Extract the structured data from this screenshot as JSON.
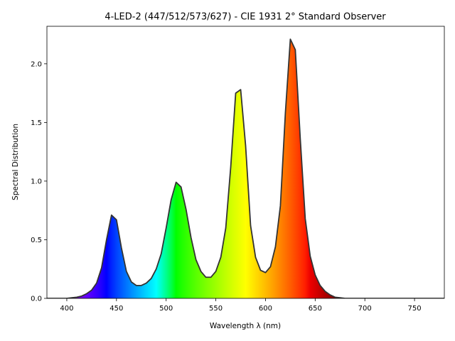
{
  "chart_data": {
    "type": "area",
    "title": "4-LED-2 (447/512/573/627) - CIE 1931 2°  Standard Observer",
    "xlabel": "Wavelength λ (nm)",
    "ylabel": "Spectral Distribution",
    "xlim": [
      380,
      780
    ],
    "ylim": [
      0,
      2.32
    ],
    "x_ticks": [
      400,
      450,
      500,
      550,
      600,
      650,
      700,
      750
    ],
    "y_ticks": [
      0.0,
      0.5,
      1.0,
      1.5,
      2.0
    ],
    "x_tick_labels": [
      "400",
      "450",
      "500",
      "550",
      "600",
      "650",
      "700",
      "750"
    ],
    "y_tick_labels": [
      "0.0",
      "0.5",
      "1.0",
      "1.5",
      "2.0"
    ],
    "grid": false,
    "fill": "spectral-colors",
    "line_color": "#333333",
    "series": [
      {
        "x": [
          380,
          385,
          390,
          395,
          400,
          405,
          410,
          415,
          420,
          425,
          430,
          435,
          440,
          445,
          450,
          455,
          460,
          465,
          470,
          475,
          480,
          485,
          490,
          495,
          500,
          505,
          510,
          515,
          520,
          525,
          530,
          535,
          540,
          545,
          550,
          555,
          560,
          565,
          570,
          575,
          580,
          585,
          590,
          595,
          600,
          605,
          610,
          615,
          620,
          625,
          630,
          635,
          640,
          645,
          650,
          655,
          660,
          665,
          670,
          675,
          680,
          690,
          700,
          720,
          740,
          760,
          780
        ],
        "values": [
          0.0,
          0.0,
          0.0,
          0.0,
          0.0,
          0.005,
          0.01,
          0.02,
          0.04,
          0.07,
          0.13,
          0.26,
          0.5,
          0.71,
          0.67,
          0.43,
          0.23,
          0.14,
          0.11,
          0.11,
          0.13,
          0.17,
          0.25,
          0.38,
          0.6,
          0.84,
          0.99,
          0.95,
          0.76,
          0.52,
          0.33,
          0.23,
          0.18,
          0.18,
          0.23,
          0.35,
          0.6,
          1.12,
          1.75,
          1.78,
          1.3,
          0.62,
          0.35,
          0.24,
          0.22,
          0.27,
          0.44,
          0.79,
          1.58,
          2.21,
          2.12,
          1.36,
          0.68,
          0.36,
          0.2,
          0.11,
          0.06,
          0.03,
          0.01,
          0.005,
          0.0,
          0.0,
          0.0,
          0.0,
          0.0,
          0.0,
          0.0
        ]
      }
    ]
  }
}
